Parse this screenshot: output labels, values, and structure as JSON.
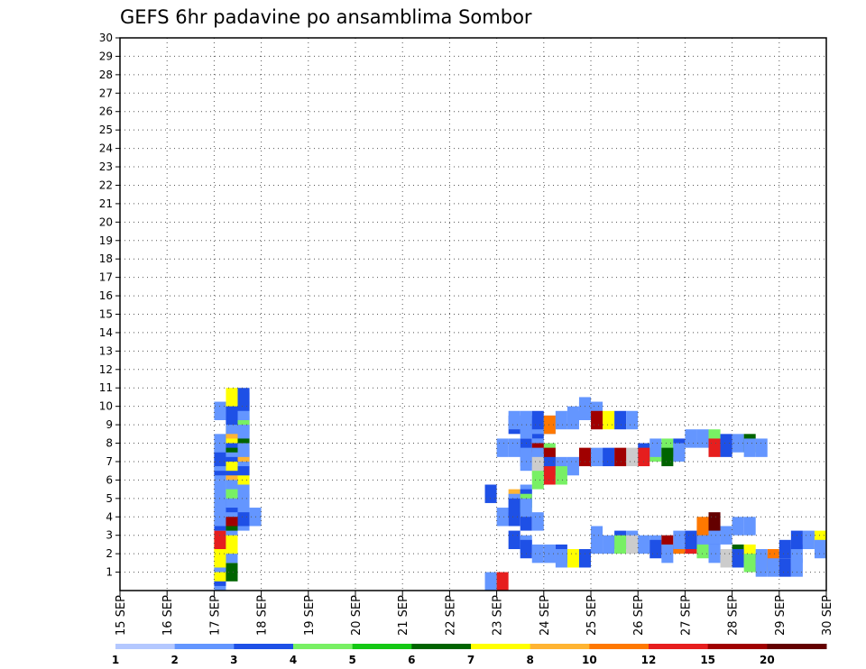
{
  "chart_data": {
    "type": "heatmap",
    "title": "GEFS 6hr padavine po ansamblima Sombor",
    "x_labels": [
      "15 SEP",
      "16 SEP",
      "17 SEP",
      "18 SEP",
      "19 SEP",
      "20 SEP",
      "21 SEP",
      "22 SEP",
      "23 SEP",
      "24 SEP",
      "25 SEP",
      "26 SEP",
      "27 SEP",
      "28 SEP",
      "29 SEP",
      "30 SEP"
    ],
    "y_range": [
      0,
      30
    ],
    "y_ticks": [
      "1",
      "2",
      "3",
      "4",
      "5",
      "6",
      "7",
      "8",
      "9",
      "10",
      "11",
      "12",
      "13",
      "14",
      "15",
      "16",
      "17",
      "18",
      "19",
      "20",
      "21",
      "22",
      "23",
      "24",
      "25",
      "26",
      "27",
      "28",
      "29",
      "30"
    ],
    "x_range_days": [
      15,
      30
    ],
    "time_step_hours": 6,
    "grid": true,
    "legend": {
      "position": "bottom",
      "labels": [
        "1",
        "2",
        "3",
        "4",
        "5",
        "6",
        "7",
        "8",
        "10",
        "12",
        "15",
        "20"
      ],
      "colors": [
        "#b4c8ff",
        "#6496ff",
        "#1e50e6",
        "#78f064",
        "#14c814",
        "#006400",
        "#ffff00",
        "#ffb432",
        "#ff7800",
        "#e61e1e",
        "#a00000",
        "#640000"
      ]
    },
    "cells": [
      [
        17,
        0,
        1
      ],
      [
        17,
        0.25,
        2
      ],
      [
        17,
        0.5,
        6
      ],
      [
        17.25,
        0.5,
        5
      ],
      [
        17,
        1,
        1
      ],
      [
        17,
        1.25,
        6
      ],
      [
        17,
        1.5,
        6
      ],
      [
        17.25,
        1.5,
        1
      ],
      [
        17,
        2,
        6
      ],
      [
        17.25,
        2,
        6
      ],
      [
        17,
        2.25,
        9
      ],
      [
        17.25,
        2.25,
        6
      ],
      [
        17.25,
        3,
        1
      ],
      [
        17,
        3.25,
        2
      ],
      [
        17.25,
        3.25,
        5
      ],
      [
        17.5,
        3.25,
        1
      ],
      [
        17,
        3.5,
        1
      ],
      [
        17.25,
        3.5,
        10
      ],
      [
        17.5,
        3.5,
        2
      ],
      [
        17.75,
        3.5,
        1
      ],
      [
        17,
        4,
        1
      ],
      [
        17.25,
        4,
        1
      ],
      [
        17,
        4.25,
        1
      ],
      [
        17.25,
        4.25,
        2
      ],
      [
        17.5,
        4.25,
        1
      ],
      [
        17.25,
        4.5,
        1
      ],
      [
        17,
        5,
        1
      ],
      [
        17.25,
        5,
        3
      ],
      [
        17.5,
        5,
        1
      ],
      [
        17.25,
        5.5,
        1
      ],
      [
        17.5,
        5.75,
        6
      ],
      [
        17,
        6,
        1
      ],
      [
        17.25,
        6,
        7
      ],
      [
        17,
        6.25,
        2
      ],
      [
        17.25,
        6.25,
        2
      ],
      [
        17.5,
        6.25,
        2
      ],
      [
        17,
        6.5,
        1
      ],
      [
        17.25,
        6.5,
        6
      ],
      [
        17,
        6.75,
        2
      ],
      [
        17.5,
        6.75,
        1
      ],
      [
        17.25,
        7,
        2
      ],
      [
        17.5,
        7,
        7
      ],
      [
        17.25,
        7.25,
        1
      ],
      [
        17.5,
        7.25,
        1
      ],
      [
        17,
        7.5,
        1
      ],
      [
        17.25,
        7.5,
        5
      ],
      [
        17.25,
        7.75,
        2
      ],
      [
        17.25,
        8,
        6
      ],
      [
        17.5,
        8,
        5
      ],
      [
        17.25,
        8.25,
        7
      ],
      [
        17.5,
        8.25,
        1
      ],
      [
        17.25,
        8.5,
        1
      ],
      [
        17.5,
        8.5,
        1
      ],
      [
        17.25,
        8.75,
        1
      ],
      [
        17.5,
        8.75,
        1
      ],
      [
        17.25,
        9,
        2
      ],
      [
        17.5,
        9,
        3
      ],
      [
        17,
        9.25,
        1
      ],
      [
        17.25,
        9.25,
        2
      ],
      [
        17.5,
        9.25,
        1
      ],
      [
        17.5,
        9.75,
        2
      ],
      [
        17.25,
        10,
        6
      ],
      [
        17.5,
        10,
        2
      ],
      [
        22.75,
        0,
        1
      ],
      [
        23,
        0,
        9
      ],
      [
        22.75,
        4.75,
        2
      ],
      [
        23,
        3.5,
        1
      ],
      [
        23.25,
        3.5,
        2
      ],
      [
        23.5,
        3.25,
        2
      ],
      [
        23.75,
        3.25,
        1
      ],
      [
        23.25,
        2.25,
        2
      ],
      [
        23.5,
        2,
        1
      ],
      [
        23.5,
        1.75,
        2
      ],
      [
        23.75,
        1.5,
        1
      ],
      [
        24,
        1.5,
        1
      ],
      [
        24.25,
        1.5,
        2
      ],
      [
        24.5,
        1.25,
        6
      ],
      [
        24.75,
        1.25,
        2
      ],
      [
        24.25,
        1.25,
        1
      ],
      [
        23,
        7.25,
        1
      ],
      [
        23.25,
        7.25,
        1
      ],
      [
        23.5,
        7.25,
        2
      ],
      [
        23.75,
        7.25,
        1
      ],
      [
        24,
        7,
        3
      ],
      [
        23.75,
        7,
        10
      ],
      [
        23.5,
        6.75,
        1
      ],
      [
        23.75,
        6.75,
        1
      ],
      [
        24,
        6.75,
        10
      ],
      [
        23.5,
        6.5,
        1
      ],
      [
        23.75,
        6.5,
        1
      ],
      [
        24,
        6.25,
        2
      ],
      [
        23.75,
        6.25,
        12
      ],
      [
        24.25,
        6.25,
        1
      ],
      [
        24.5,
        6.25,
        1
      ],
      [
        24,
        5.75,
        9
      ],
      [
        24.25,
        5.75,
        3
      ],
      [
        23.75,
        5.5,
        3
      ],
      [
        23.5,
        4.75,
        1
      ],
      [
        23.25,
        4.5,
        7
      ],
      [
        23.5,
        4.5,
        2
      ],
      [
        23.25,
        4.25,
        1
      ],
      [
        23.5,
        4.25,
        3
      ],
      [
        23.25,
        4,
        2
      ],
      [
        23.5,
        4,
        1
      ],
      [
        23.5,
        8.25,
        1
      ],
      [
        23.75,
        8.25,
        2
      ],
      [
        23.25,
        8.5,
        2
      ],
      [
        23.5,
        8.5,
        1
      ],
      [
        23.75,
        8.5,
        1
      ],
      [
        24,
        8.5,
        1
      ],
      [
        23.25,
        8.75,
        1
      ],
      [
        23.5,
        8.75,
        1
      ],
      [
        23.75,
        8.75,
        2
      ],
      [
        24,
        8.5,
        8
      ],
      [
        24.25,
        8.75,
        1
      ],
      [
        24.5,
        8.75,
        1
      ],
      [
        24.75,
        9.25,
        1
      ],
      [
        25,
        9.25,
        1
      ],
      [
        24.75,
        9.5,
        1
      ],
      [
        24.5,
        9,
        1
      ],
      [
        25,
        8.75,
        10
      ],
      [
        25.25,
        8.75,
        6
      ],
      [
        25.5,
        8.75,
        2
      ],
      [
        25.75,
        8.75,
        1
      ],
      [
        25,
        2,
        1
      ],
      [
        25.25,
        2,
        1
      ],
      [
        25,
        2.5,
        1
      ],
      [
        25.5,
        2.25,
        2
      ],
      [
        25.75,
        2.25,
        1
      ],
      [
        25.5,
        2,
        3
      ],
      [
        25.75,
        2,
        12
      ],
      [
        26,
        2,
        1
      ],
      [
        26.25,
        2,
        1
      ],
      [
        26.25,
        1.75,
        2
      ],
      [
        26.5,
        2,
        10
      ],
      [
        26.75,
        2,
        8
      ],
      [
        27,
        2,
        9
      ],
      [
        27.25,
        2,
        6
      ],
      [
        27.25,
        1.75,
        3
      ],
      [
        27.5,
        1.75,
        2
      ],
      [
        27.5,
        1.5,
        1
      ],
      [
        26.5,
        1.5,
        1
      ],
      [
        26.75,
        2.25,
        1
      ],
      [
        27,
        2.25,
        2
      ],
      [
        27.25,
        2.5,
        1
      ],
      [
        27.5,
        2.5,
        1
      ],
      [
        27.75,
        2.5,
        1
      ],
      [
        27.25,
        3,
        8
      ],
      [
        27.5,
        3.25,
        11
      ],
      [
        28,
        3,
        1
      ],
      [
        28.25,
        3,
        1
      ],
      [
        26,
        7,
        2
      ],
      [
        26.25,
        7,
        3
      ],
      [
        26.25,
        7.25,
        1
      ],
      [
        26.5,
        7.25,
        3
      ],
      [
        26.75,
        7.25,
        2
      ],
      [
        26.75,
        7,
        1
      ],
      [
        26.5,
        6.75,
        5
      ],
      [
        26,
        6.75,
        9
      ],
      [
        25.75,
        6.75,
        12
      ],
      [
        25.5,
        6.75,
        10
      ],
      [
        25.25,
        6.75,
        2
      ],
      [
        25,
        6.75,
        1
      ],
      [
        24.75,
        6.75,
        10
      ],
      [
        27,
        7.75,
        1
      ],
      [
        27.25,
        7.75,
        1
      ],
      [
        27.5,
        7.75,
        3
      ],
      [
        27.75,
        7.5,
        2
      ],
      [
        28,
        7.5,
        1
      ],
      [
        28.25,
        7.5,
        5
      ],
      [
        27.5,
        7.25,
        9
      ],
      [
        27.75,
        7.25,
        2
      ],
      [
        28.25,
        7.25,
        1
      ],
      [
        28.5,
        7.25,
        1
      ],
      [
        28,
        1.5,
        5
      ],
      [
        28.25,
        1.5,
        6
      ],
      [
        27.75,
        1.25,
        12
      ],
      [
        28,
        1.25,
        2
      ],
      [
        28.25,
        1,
        3
      ],
      [
        28.5,
        1,
        5
      ],
      [
        28.75,
        1,
        7
      ],
      [
        28.75,
        1.25,
        8
      ],
      [
        28.5,
        1.25,
        1
      ],
      [
        28.5,
        0.75,
        1
      ],
      [
        28.75,
        0.75,
        1
      ],
      [
        29,
        0.75,
        2
      ],
      [
        29.25,
        0.75,
        1
      ],
      [
        29.25,
        1.5,
        1
      ],
      [
        29,
        1.75,
        2
      ],
      [
        29.25,
        2.25,
        2
      ],
      [
        29.5,
        2.25,
        1
      ],
      [
        29.75,
        2.25,
        6
      ],
      [
        29.75,
        1.75,
        1
      ]
    ]
  }
}
